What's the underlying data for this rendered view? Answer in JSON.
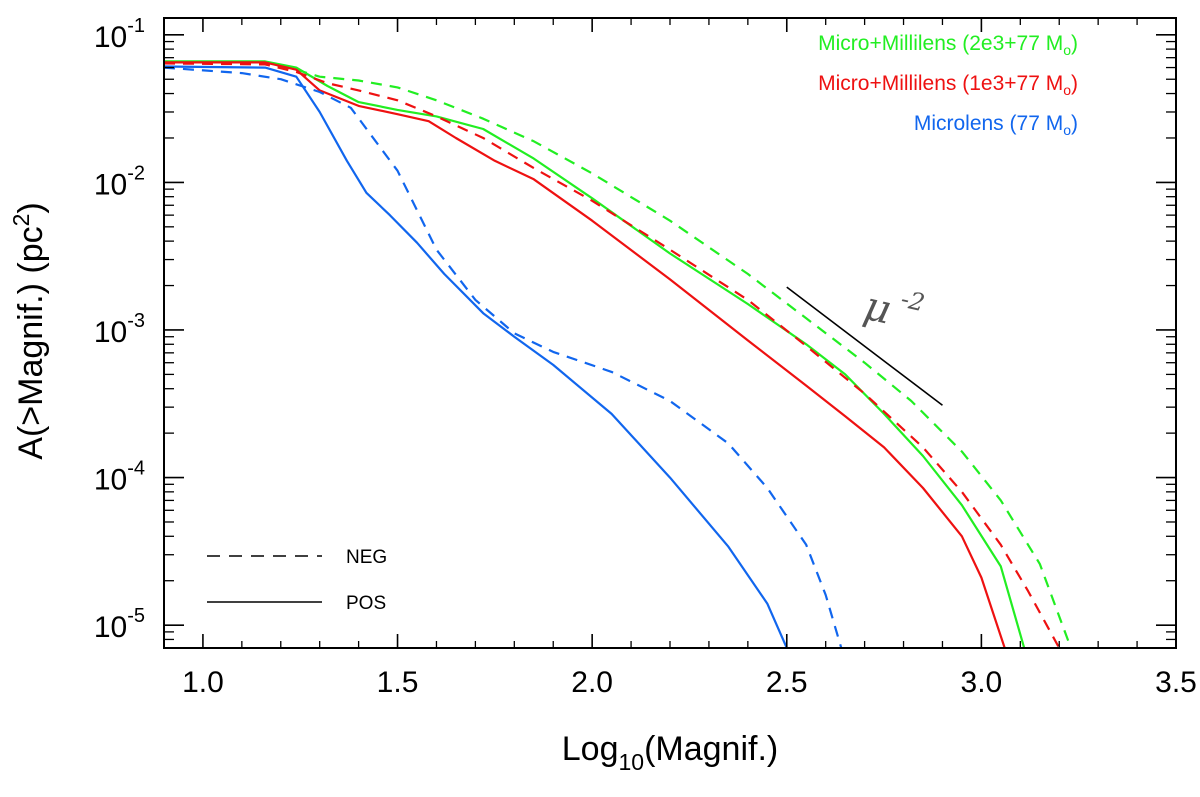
{
  "chart_data": {
    "type": "line",
    "xlabel": {
      "prefix": "Log",
      "sub": "10",
      "suffix": "(Magnif.)"
    },
    "ylabel": {
      "prefix": "A(>Magnif.) (pc",
      "sup": "2",
      "suffix": ")"
    },
    "xlim": [
      0.9,
      3.5
    ],
    "ylim": [
      7e-06,
      0.13
    ],
    "yscale": "log",
    "xticks": [
      "1.0",
      "1.5",
      "2.0",
      "2.5",
      "3.0",
      "3.5"
    ],
    "xtick_values": [
      1.0,
      1.5,
      2.0,
      2.5,
      3.0,
      3.5
    ],
    "yticks": [
      {
        "value": 0.1,
        "base": "10",
        "exp": "-1"
      },
      {
        "value": 0.01,
        "base": "10",
        "exp": "-2"
      },
      {
        "value": 0.001,
        "base": "10",
        "exp": "-3"
      },
      {
        "value": 0.0001,
        "base": "10",
        "exp": "-4"
      },
      {
        "value": 1e-05,
        "base": "10",
        "exp": "-5"
      }
    ],
    "legend": [
      {
        "text": "Micro+Millilens (2e3+77 M",
        "sub": "o",
        "close": ")",
        "color": "#22ee22"
      },
      {
        "text": "Micro+Millilens (1e3+77 M",
        "sub": "o",
        "close": ")",
        "color": "#ee1111"
      },
      {
        "text": "Microlens (77 M",
        "sub": "o",
        "close": ")",
        "color": "#1166ee"
      }
    ],
    "style_legend": [
      {
        "label": "NEG",
        "dash": true
      },
      {
        "label": "POS",
        "dash": false
      }
    ],
    "annotation": {
      "text": "μ",
      "sup": "-2",
      "slope": -2,
      "x_start": 2.5,
      "x_end": 2.9,
      "y_start": 0.00195
    },
    "series": [
      {
        "name": "Micro+Millilens (2e3+77) POS",
        "color": "#22ee22",
        "dash": false,
        "x": [
          0.9,
          1.16,
          1.24,
          1.32,
          1.4,
          1.5,
          1.6,
          1.72,
          1.85,
          2.0,
          2.2,
          2.4,
          2.55,
          2.65,
          2.75,
          2.85,
          2.95,
          3.05,
          3.11
        ],
        "y": [
          0.066,
          0.066,
          0.06,
          0.045,
          0.035,
          0.031,
          0.028,
          0.023,
          0.0145,
          0.0078,
          0.0033,
          0.0015,
          0.0008,
          0.0005,
          0.00027,
          0.00014,
          6.5e-05,
          2.5e-05,
          7e-06
        ]
      },
      {
        "name": "Micro+Millilens (2e3+77) NEG",
        "color": "#22ee22",
        "dash": true,
        "x": [
          0.9,
          1.16,
          1.24,
          1.3,
          1.4,
          1.5,
          1.6,
          1.72,
          1.85,
          2.0,
          2.2,
          2.4,
          2.55,
          2.7,
          2.82,
          2.95,
          3.05,
          3.15,
          3.23
        ],
        "y": [
          0.065,
          0.064,
          0.058,
          0.052,
          0.049,
          0.044,
          0.036,
          0.027,
          0.019,
          0.0115,
          0.0055,
          0.0024,
          0.0012,
          0.0006,
          0.00033,
          0.00015,
          7e-05,
          2.6e-05,
          7e-06
        ]
      },
      {
        "name": "Micro+Millilens (1e3+77) POS",
        "color": "#ee1111",
        "dash": false,
        "x": [
          0.9,
          1.16,
          1.24,
          1.3,
          1.4,
          1.5,
          1.58,
          1.65,
          1.75,
          1.85,
          2.0,
          2.2,
          2.4,
          2.55,
          2.65,
          2.75,
          2.85,
          2.95,
          3.0,
          3.06
        ],
        "y": [
          0.065,
          0.065,
          0.058,
          0.042,
          0.033,
          0.029,
          0.026,
          0.02,
          0.014,
          0.0105,
          0.0055,
          0.0022,
          0.00085,
          0.00042,
          0.00026,
          0.00016,
          8.5e-05,
          4e-05,
          2.1e-05,
          7e-06
        ]
      },
      {
        "name": "Micro+Millilens (1e3+77) NEG",
        "color": "#ee1111",
        "dash": true,
        "x": [
          0.9,
          1.16,
          1.24,
          1.32,
          1.4,
          1.5,
          1.6,
          1.72,
          1.85,
          2.0,
          2.2,
          2.4,
          2.55,
          2.7,
          2.85,
          2.95,
          3.05,
          3.12,
          3.2
        ],
        "y": [
          0.064,
          0.063,
          0.056,
          0.047,
          0.042,
          0.036,
          0.028,
          0.02,
          0.0125,
          0.0075,
          0.0035,
          0.0016,
          0.00078,
          0.00037,
          0.00016,
          8e-05,
          3.5e-05,
          1.7e-05,
          7e-06
        ]
      },
      {
        "name": "Microlens (77) POS",
        "color": "#1166ee",
        "dash": false,
        "x": [
          0.9,
          1.16,
          1.24,
          1.3,
          1.37,
          1.42,
          1.48,
          1.55,
          1.62,
          1.72,
          1.8,
          1.9,
          2.05,
          2.2,
          2.35,
          2.45,
          2.5
        ],
        "y": [
          0.061,
          0.06,
          0.052,
          0.03,
          0.014,
          0.0085,
          0.006,
          0.0039,
          0.0024,
          0.0013,
          0.0009,
          0.00058,
          0.00027,
          0.0001,
          3.4e-05,
          1.4e-05,
          7e-06
        ]
      },
      {
        "name": "Microlens (77) NEG",
        "color": "#1166ee",
        "dash": true,
        "x": [
          0.9,
          1.1,
          1.2,
          1.3,
          1.38,
          1.5,
          1.6,
          1.7,
          1.8,
          1.9,
          2.05,
          2.2,
          2.35,
          2.45,
          2.55,
          2.6,
          2.64
        ],
        "y": [
          0.06,
          0.055,
          0.05,
          0.041,
          0.032,
          0.012,
          0.0035,
          0.0016,
          0.00095,
          0.00071,
          0.00052,
          0.00033,
          0.00017,
          8.5e-05,
          3.5e-05,
          1.6e-05,
          7e-06
        ]
      }
    ]
  }
}
